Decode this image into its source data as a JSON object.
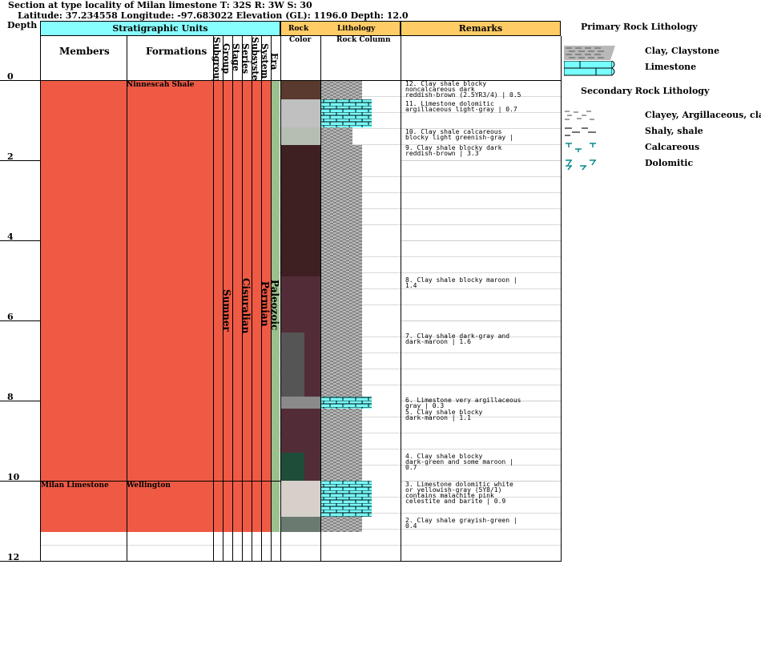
{
  "title": {
    "line1": "Section at type locality of Milan limestone T: 32S R: 3W S: 30",
    "line2": "Latitude: 37.234558 Longitude: -97.683022 Elevation (GL): 1196.0 Depth: 12.0"
  },
  "headers": {
    "depth": "Depth",
    "strat_units": "Stratigraphic Units",
    "members": "Members",
    "formations": "Formations",
    "subgroup": "Subgroup",
    "group": "Group",
    "stage": "Stage",
    "series": "Series",
    "subsystem": "Subsystem",
    "system": "System",
    "era": "Era",
    "rock": "Rock",
    "color": "Color",
    "lithology": "Lithology",
    "rock_column": "Rock Column",
    "remarks": "Remarks"
  },
  "depth_ticks": [
    "0",
    "2",
    "4",
    "6",
    "8",
    "10",
    "12"
  ],
  "strat": {
    "member_milan": "Milan Limestone",
    "formation_ninnescah": "Ninnescah Shale",
    "formation_wellington": "Wellington",
    "group": "Sumner",
    "series": "Cisuralian",
    "system": "Permian",
    "era": "Paleozoic"
  },
  "remarks": [
    "12. Clay shale blocky\nnoncalcareous dark\nreddish-brown (2.5YR3/4) | 0.5",
    "11. Limestone dolomitic\nargillaceous light-gray | 0.7",
    "10. Clay shale calcareous\nblocky light greenish-gray |",
    "9. Clay shale blocky dark\nreddish-brown | 3.3",
    "8. Clay shale blocky maroon |\n1.4",
    "7. Clay shale dark-gray and\ndark-maroon | 1.6",
    "6. Limestone very argillaceous\ngray | 0.3",
    "5. Clay shale blocky\ndark-maroon | 1.1",
    "4. Clay shale blocky\ndark-green and some maroon |\n0.7",
    "3. Limestone dolomitic white\nor yellowish-gray (5Y8/1)\ncontains malachite pink\ncelestite and barite | 0.9",
    "2. Clay shale grayish-green |\n0.4"
  ],
  "legend": {
    "primary_title": "Primary Rock Lithology",
    "secondary_title": "Secondary Rock Lithology",
    "clay": "Clay, Claystone",
    "limestone": "Limestone",
    "clayey": "Clayey, Argillaceous, clay",
    "shaly": "Shaly, shale",
    "calcareous": "Calcareous",
    "dolomitic": "Dolomitic"
  },
  "colors": {
    "header_cyan": "#8ff",
    "header_orange": "#ffcc66",
    "strat_red": "#ef5a45",
    "era_green": "#99c08d",
    "limestone_cyan": "#7ff",
    "shale_gray": "#999"
  }
}
